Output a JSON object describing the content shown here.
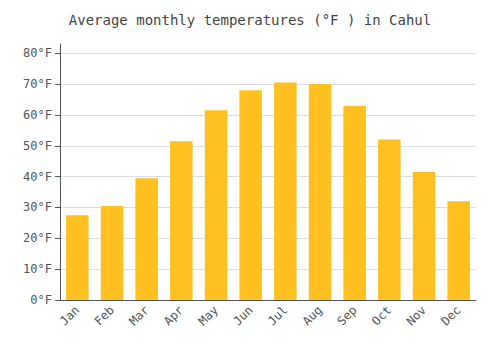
{
  "chart_data": {
    "type": "bar",
    "title": "Average monthly temperatures (°F ) in Cahul",
    "categories": [
      "Jan",
      "Feb",
      "Mar",
      "Apr",
      "May",
      "Jun",
      "Jul",
      "Aug",
      "Sep",
      "Oct",
      "Nov",
      "Dec"
    ],
    "values": [
      27.5,
      30.5,
      39.5,
      51.5,
      61.5,
      68.0,
      70.5,
      70.0,
      63.0,
      52.0,
      41.5,
      32.0
    ],
    "color": "#FFC020",
    "ylim": [
      0,
      83
    ],
    "yticks": [
      {
        "value": 0,
        "label": "0°F"
      },
      {
        "value": 10,
        "label": "10°F"
      },
      {
        "value": 20,
        "label": "20°F"
      },
      {
        "value": 30,
        "label": "30°F"
      },
      {
        "value": 40,
        "label": "40°F"
      },
      {
        "value": 50,
        "label": "50°F"
      },
      {
        "value": 60,
        "label": "60°F"
      },
      {
        "value": 70,
        "label": "70°F"
      },
      {
        "value": 80,
        "label": "80°F"
      }
    ],
    "grid": true
  }
}
